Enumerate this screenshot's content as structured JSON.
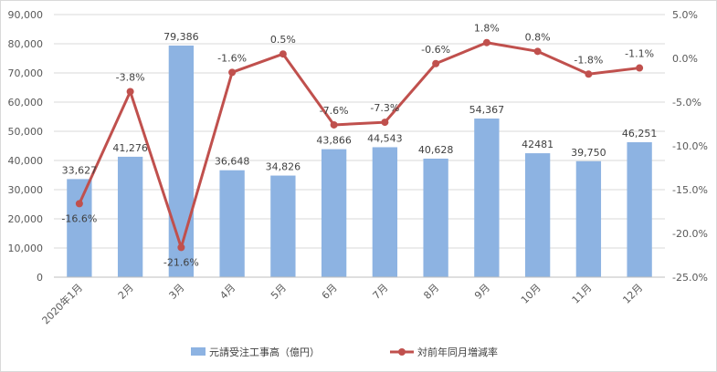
{
  "chart_data": {
    "type": "bar+line",
    "title": "",
    "categories": [
      "2020年1月",
      "2月",
      "3月",
      "4月",
      "5月",
      "6月",
      "7月",
      "8月",
      "9月",
      "10月",
      "11月",
      "12月"
    ],
    "series": [
      {
        "name": "元請受注工事高（億円）",
        "type": "bar",
        "axis": "left",
        "color": "#8db3e2",
        "values": [
          33627,
          41276,
          79386,
          36648,
          34826,
          43866,
          44543,
          40628,
          54367,
          42481,
          39750,
          46251
        ],
        "labels": [
          "33,627",
          "41,276",
          "79,386",
          "36,648",
          "34,826",
          "43,866",
          "44,543",
          "40,628",
          "54,367",
          "42481",
          "39,750",
          "46,251"
        ]
      },
      {
        "name": "対前年同月増減率",
        "type": "line",
        "axis": "right",
        "color": "#c0504d",
        "values": [
          -16.6,
          -3.8,
          -21.6,
          -1.6,
          0.5,
          -7.6,
          -7.3,
          -0.6,
          1.8,
          0.8,
          -1.8,
          -1.1
        ],
        "labels": [
          "-16.6%",
          "-3.8%",
          "-21.6%",
          "-1.6%",
          "0.5%",
          "-7.6%",
          "-7.3%",
          "-0.6%",
          "1.8%",
          "0.8%",
          "-1.8%",
          "-1.1%"
        ]
      }
    ],
    "y_left": {
      "min": 0,
      "max": 90000,
      "step": 10000,
      "tick_labels": [
        "0",
        "10,000",
        "20,000",
        "30,000",
        "40,000",
        "50,000",
        "60,000",
        "70,000",
        "80,000",
        "90,000"
      ]
    },
    "y_right": {
      "min": -25,
      "max": 5,
      "step": 5,
      "tick_labels": [
        "-25.0%",
        "-20.0%",
        "-15.0%",
        "-10.0%",
        "-5.0%",
        "0.0%",
        "5.0%"
      ]
    },
    "grid": true,
    "legend_position": "bottom"
  }
}
